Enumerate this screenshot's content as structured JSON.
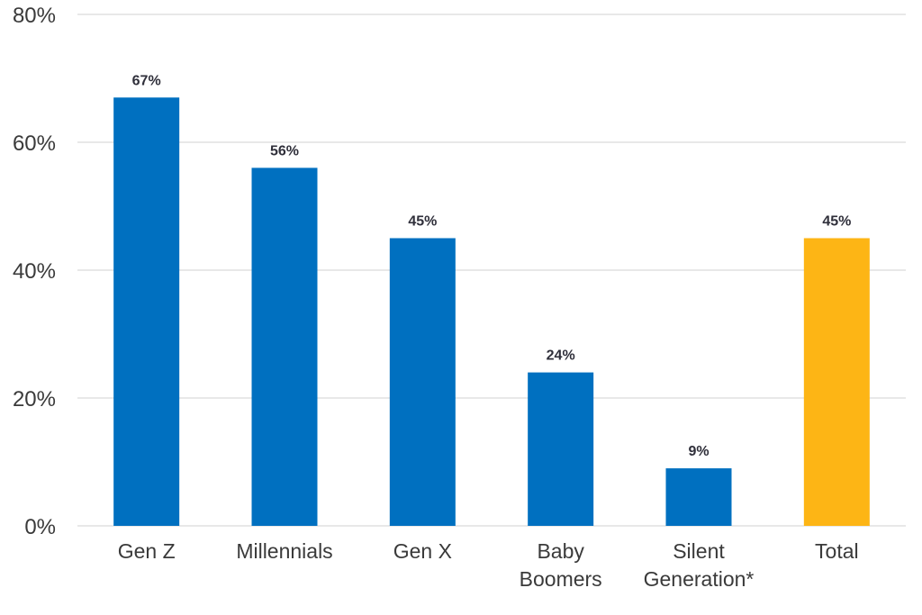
{
  "chart_data": {
    "type": "bar",
    "title": "",
    "xlabel": "",
    "ylabel": "",
    "categories": [
      [
        "Gen Z"
      ],
      [
        "Millennials"
      ],
      [
        "Gen X"
      ],
      [
        "Baby",
        "Boomers"
      ],
      [
        "Silent",
        "Generation*"
      ],
      [
        "Total"
      ]
    ],
    "values": [
      67,
      56,
      45,
      24,
      9,
      45
    ],
    "data_labels": [
      "67%",
      "56%",
      "45%",
      "24%",
      "9%",
      "45%"
    ],
    "bar_colors": [
      "#0070c0",
      "#0070c0",
      "#0070c0",
      "#0070c0",
      "#0070c0",
      "#fdb515"
    ],
    "ylim": [
      0,
      80
    ],
    "yticks": [
      0,
      20,
      40,
      60,
      80
    ],
    "ytick_labels": [
      "0%",
      "20%",
      "40%",
      "60%",
      "80%"
    ],
    "grid": true,
    "legend": "none"
  }
}
